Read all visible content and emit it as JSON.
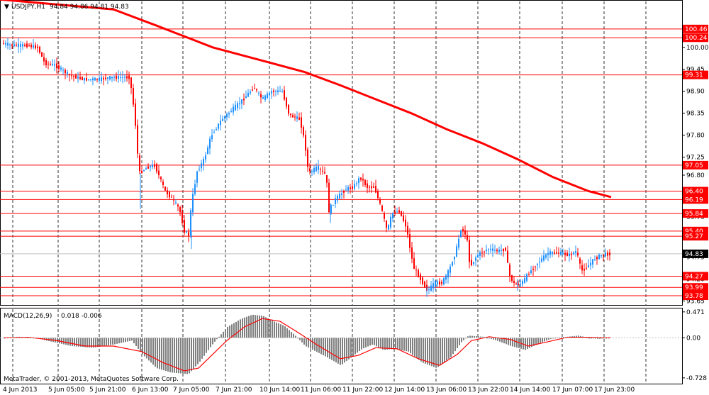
{
  "symbol_header": {
    "arrow": "▼",
    "title": "USDJPY,H1",
    "ohlc": "94.84 94.86 94.81 94.83"
  },
  "macd_header": {
    "title": "MACD(12,26,9)",
    "values": "0.018 -0.006"
  },
  "copyright": "MetaTrader, © 2001-2013, MetaQuotes Software Corp.",
  "colors": {
    "bull": "#1E90FF",
    "bear": "#FF0000",
    "ma": "#FF0000",
    "level": "#FF0000",
    "grid": "#000000",
    "histogram": "#808080",
    "signal": "#FF0000",
    "price_tag": "#000000"
  },
  "chart_data": [
    {
      "type": "candlestick",
      "title": "USDJPY,H1",
      "y_ticks": [
        "100.00",
        "99.45",
        "98.90",
        "98.35",
        "97.80",
        "97.25",
        "96.80",
        "95.75",
        "94.75",
        "94.20",
        "93.65"
      ],
      "y_range": [
        93.55,
        101.15
      ],
      "x_ticks": [
        "4 Jun 2013",
        "5 Jun 05:00",
        "5 Jun 21:00",
        "6 Jun 13:00",
        "7 Jun 05:00",
        "7 Jun 21:00",
        "10 Jun 14:00",
        "11 Jun 06:00",
        "11 Jun 22:00",
        "12 Jun 14:00",
        "13 Jun 06:00",
        "13 Jun 22:00",
        "14 Jun 14:00",
        "17 Jun 07:00",
        "17 Jun 23:00"
      ],
      "levels": [
        "100.46",
        "100.24",
        "99.31",
        "97.05",
        "96.40",
        "96.19",
        "95.84",
        "95.40",
        "95.27",
        "94.27",
        "93.99",
        "93.78"
      ],
      "current_price": "94.83",
      "moving_average": [
        [
          0,
          101.2
        ],
        [
          160,
          100.95
        ],
        [
          220,
          100.55
        ],
        [
          300,
          100.0
        ],
        [
          380,
          99.62
        ],
        [
          430,
          99.38
        ],
        [
          480,
          99.05
        ],
        [
          530,
          98.7
        ],
        [
          580,
          98.35
        ],
        [
          630,
          97.95
        ],
        [
          680,
          97.6
        ],
        [
          730,
          97.2
        ],
        [
          780,
          96.75
        ],
        [
          830,
          96.4
        ],
        [
          862,
          96.25
        ]
      ],
      "path_points": [
        [
          4,
          100.1
        ],
        [
          20,
          100.05
        ],
        [
          40,
          100.05
        ],
        [
          55,
          100.0
        ],
        [
          65,
          99.6
        ],
        [
          80,
          99.55
        ],
        [
          100,
          99.3
        ],
        [
          120,
          99.2
        ],
        [
          140,
          99.2
        ],
        [
          160,
          99.25
        ],
        [
          185,
          99.25
        ],
        [
          192,
          98.3
        ],
        [
          198,
          96.85
        ],
        [
          210,
          97.0
        ],
        [
          220,
          97.05
        ],
        [
          235,
          96.4
        ],
        [
          245,
          96.2
        ],
        [
          255,
          95.95
        ],
        [
          262,
          95.4
        ],
        [
          268,
          95.3
        ],
        [
          272,
          96.1
        ],
        [
          280,
          96.9
        ],
        [
          290,
          97.2
        ],
        [
          300,
          97.8
        ],
        [
          315,
          98.2
        ],
        [
          330,
          98.45
        ],
        [
          345,
          98.7
        ],
        [
          360,
          99.0
        ],
        [
          372,
          98.7
        ],
        [
          385,
          98.9
        ],
        [
          400,
          98.9
        ],
        [
          410,
          98.3
        ],
        [
          425,
          98.2
        ],
        [
          432,
          97.6
        ],
        [
          437,
          96.85
        ],
        [
          450,
          97.0
        ],
        [
          462,
          96.8
        ],
        [
          466,
          95.9
        ],
        [
          475,
          96.2
        ],
        [
          490,
          96.45
        ],
        [
          500,
          96.5
        ],
        [
          510,
          96.75
        ],
        [
          520,
          96.5
        ],
        [
          530,
          96.5
        ],
        [
          540,
          95.95
        ],
        [
          548,
          95.4
        ],
        [
          555,
          95.85
        ],
        [
          565,
          95.9
        ],
        [
          575,
          95.5
        ],
        [
          585,
          94.5
        ],
        [
          595,
          94.2
        ],
        [
          605,
          93.9
        ],
        [
          615,
          94.1
        ],
        [
          625,
          94.1
        ],
        [
          635,
          94.4
        ],
        [
          645,
          94.9
        ],
        [
          652,
          95.45
        ],
        [
          660,
          95.3
        ],
        [
          665,
          94.5
        ],
        [
          675,
          94.8
        ],
        [
          690,
          94.95
        ],
        [
          705,
          94.9
        ],
        [
          715,
          94.95
        ],
        [
          720,
          94.3
        ],
        [
          728,
          94.05
        ],
        [
          738,
          94.1
        ],
        [
          748,
          94.35
        ],
        [
          760,
          94.6
        ],
        [
          775,
          94.85
        ],
        [
          790,
          94.85
        ],
        [
          805,
          94.8
        ],
        [
          815,
          94.9
        ],
        [
          822,
          94.4
        ],
        [
          830,
          94.5
        ],
        [
          840,
          94.7
        ],
        [
          850,
          94.8
        ],
        [
          860,
          94.83
        ]
      ]
    },
    {
      "type": "bar",
      "title": "MACD(12,26,9)",
      "y_ticks": [
        "0.471",
        "0.00",
        "-0.728"
      ],
      "y_range": [
        -0.82,
        0.52
      ],
      "histogram_points": [
        [
          5,
          0.0
        ],
        [
          25,
          0.02
        ],
        [
          50,
          0.0
        ],
        [
          65,
          -0.05
        ],
        [
          100,
          -0.15
        ],
        [
          130,
          -0.18
        ],
        [
          160,
          -0.12
        ],
        [
          185,
          -0.05
        ],
        [
          200,
          -0.3
        ],
        [
          220,
          -0.55
        ],
        [
          240,
          -0.63
        ],
        [
          265,
          -0.66
        ],
        [
          280,
          -0.45
        ],
        [
          300,
          -0.1
        ],
        [
          320,
          0.2
        ],
        [
          340,
          0.35
        ],
        [
          355,
          0.42
        ],
        [
          370,
          0.4
        ],
        [
          385,
          0.3
        ],
        [
          400,
          0.22
        ],
        [
          415,
          0.05
        ],
        [
          430,
          -0.15
        ],
        [
          445,
          -0.25
        ],
        [
          460,
          -0.35
        ],
        [
          480,
          -0.5
        ],
        [
          495,
          -0.35
        ],
        [
          510,
          -0.2
        ],
        [
          525,
          -0.12
        ],
        [
          540,
          -0.22
        ],
        [
          555,
          -0.2
        ],
        [
          575,
          -0.25
        ],
        [
          595,
          -0.45
        ],
        [
          615,
          -0.55
        ],
        [
          635,
          -0.35
        ],
        [
          650,
          -0.08
        ],
        [
          660,
          0.04
        ],
        [
          680,
          0.02
        ],
        [
          700,
          -0.05
        ],
        [
          720,
          -0.15
        ],
        [
          740,
          -0.22
        ],
        [
          760,
          -0.1
        ],
        [
          780,
          0.0
        ],
        [
          800,
          0.02
        ],
        [
          815,
          0.04
        ],
        [
          830,
          0.0
        ],
        [
          845,
          -0.02
        ],
        [
          862,
          0.01
        ]
      ],
      "signal_points": [
        [
          5,
          0.0
        ],
        [
          40,
          0.01
        ],
        [
          80,
          -0.05
        ],
        [
          120,
          -0.15
        ],
        [
          160,
          -0.15
        ],
        [
          200,
          -0.25
        ],
        [
          230,
          -0.45
        ],
        [
          260,
          -0.6
        ],
        [
          280,
          -0.55
        ],
        [
          300,
          -0.3
        ],
        [
          320,
          -0.05
        ],
        [
          345,
          0.2
        ],
        [
          370,
          0.35
        ],
        [
          395,
          0.3
        ],
        [
          420,
          0.1
        ],
        [
          450,
          -0.15
        ],
        [
          480,
          -0.38
        ],
        [
          505,
          -0.32
        ],
        [
          530,
          -0.18
        ],
        [
          560,
          -0.2
        ],
        [
          590,
          -0.38
        ],
        [
          620,
          -0.5
        ],
        [
          645,
          -0.3
        ],
        [
          665,
          -0.05
        ],
        [
          690,
          0.02
        ],
        [
          720,
          -0.03
        ],
        [
          745,
          -0.15
        ],
        [
          770,
          -0.08
        ],
        [
          800,
          0.01
        ],
        [
          830,
          0.01
        ],
        [
          862,
          0.0
        ]
      ]
    }
  ]
}
